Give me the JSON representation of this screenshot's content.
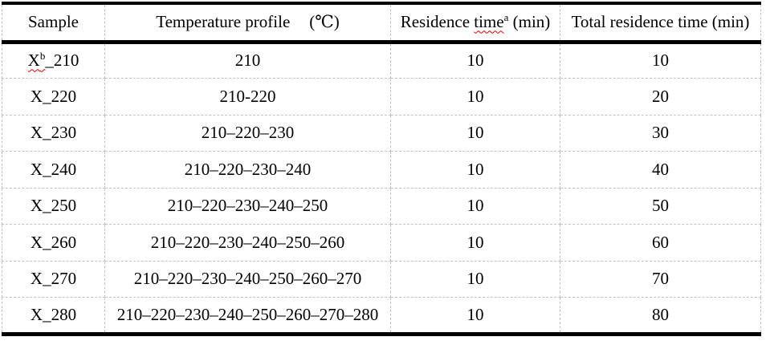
{
  "colors": {
    "spellcheck_red": "#dd0000",
    "gridline_gray": "#c2c2c2",
    "rule_black": "#000000",
    "text_black": "#000000",
    "background_white": "#ffffff"
  },
  "table": {
    "header": {
      "sample": "Sample",
      "temperature_label": "Temperature profile",
      "temperature_unit": "(℃)",
      "residence_prefix": "Residence ",
      "residence_misspelled": "time",
      "residence_footnote": "a",
      "residence_suffix": " (min)",
      "total": "Total residence time (min)"
    },
    "rows": [
      {
        "sample": {
          "misspelled": "X",
          "footnote": "b",
          "rest": "_210"
        },
        "profile": "210",
        "residence_time": "10",
        "total_time": "10"
      },
      {
        "sample": {
          "text": "X_220"
        },
        "profile": "210-220",
        "residence_time": "10",
        "total_time": "20"
      },
      {
        "sample": {
          "text": "X_230"
        },
        "profile": "210–220–230",
        "residence_time": "10",
        "total_time": "30"
      },
      {
        "sample": {
          "text": "X_240"
        },
        "profile": "210–220–230–240",
        "residence_time": "10",
        "total_time": "40"
      },
      {
        "sample": {
          "text": "X_250"
        },
        "profile": "210–220–230–240–250",
        "residence_time": "10",
        "total_time": "50"
      },
      {
        "sample": {
          "text": "X_260"
        },
        "profile": "210–220–230–240–250–260",
        "residence_time": "10",
        "total_time": "60"
      },
      {
        "sample": {
          "text": "X_270"
        },
        "profile": "210–220–230–240–250–260–270",
        "residence_time": "10",
        "total_time": "70"
      },
      {
        "sample": {
          "text": "X_280"
        },
        "profile": "210–220–230–240–250–260–270–280",
        "residence_time": "10",
        "total_time": "80"
      }
    ]
  }
}
